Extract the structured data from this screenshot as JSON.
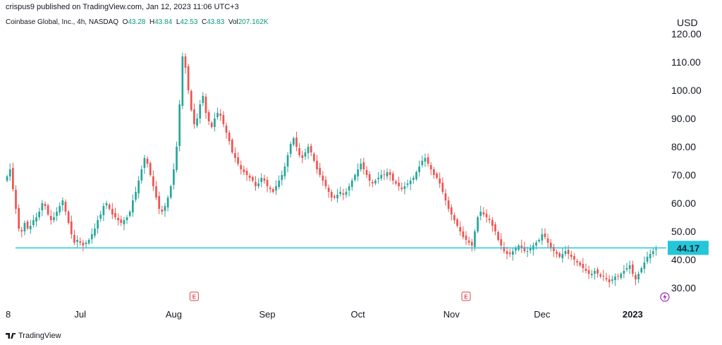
{
  "header": {
    "published": "crispus9 published on TradingView.com, Jan 12, 2023 11:06 UTC+3"
  },
  "legend": {
    "symbol": "Coinbase Global, Inc., 4h, NASDAQ",
    "o_label": "O",
    "o_value": "43.28",
    "h_label": "H",
    "h_value": "43.84",
    "l_label": "L",
    "l_value": "42.53",
    "c_label": "C",
    "c_value": "43.83",
    "vol_label": "Vol",
    "vol_value": "207.162K"
  },
  "currency": "USD",
  "footer": {
    "brand": "TradingView"
  },
  "colors": {
    "up": "#26a69a",
    "down": "#ef5350",
    "level_line": "#26c6da",
    "price_tag": "#26c6da",
    "event_marker": "#e0424b",
    "lightning": "#9c27b0"
  },
  "chart_data": {
    "type": "candlestick",
    "timeframe": "4h",
    "ylim": [
      25,
      122
    ],
    "y_ticks": [
      "30.00",
      "40.00",
      "50.00",
      "60.00",
      "70.00",
      "80.00",
      "90.00",
      "100.00",
      "110.00",
      "120.00"
    ],
    "y_tick_values": [
      30,
      40,
      50,
      60,
      70,
      80,
      90,
      100,
      110,
      120
    ],
    "x_ticks": [
      {
        "label": "8",
        "index": 0,
        "bold": false
      },
      {
        "label": "Jul",
        "index": 25,
        "bold": false
      },
      {
        "label": "Aug",
        "index": 57,
        "bold": false
      },
      {
        "label": "Sep",
        "index": 89,
        "bold": false
      },
      {
        "label": "Oct",
        "index": 120,
        "bold": false
      },
      {
        "label": "Nov",
        "index": 152,
        "bold": false
      },
      {
        "label": "Dec",
        "index": 183,
        "bold": false
      },
      {
        "label": "2023",
        "index": 214,
        "bold": true
      }
    ],
    "horizontal_level": 44.17,
    "last_price": "44.17",
    "earnings_marker_indices": [
      64,
      157
    ],
    "event_marker_label": "E",
    "lightning_marker_index": 225,
    "closes": [
      69.5,
      72,
      65,
      58,
      51,
      50,
      53,
      51,
      52,
      54,
      55,
      57,
      60,
      59,
      56,
      54,
      55,
      57,
      59,
      61,
      57,
      53,
      49,
      46,
      47,
      46,
      45,
      46,
      47,
      49,
      51,
      54,
      56,
      59,
      60,
      58,
      56,
      55,
      54,
      53,
      54,
      55,
      57,
      61,
      64,
      68,
      72,
      76,
      74,
      70,
      66,
      62,
      58,
      57,
      59,
      62,
      66,
      72,
      80,
      95,
      112,
      108,
      100,
      93,
      88,
      90,
      95,
      98,
      92,
      89,
      87,
      90,
      92,
      91,
      88,
      85,
      82,
      78,
      76,
      74,
      72,
      71,
      70,
      69,
      68,
      66,
      67,
      69,
      68,
      66,
      65,
      64,
      66,
      68,
      70,
      73,
      77,
      81,
      83,
      80,
      77,
      76,
      78,
      80,
      78,
      75,
      72,
      70,
      68,
      66,
      64,
      62,
      62,
      63,
      64,
      63,
      64,
      66,
      68,
      70,
      72,
      74,
      72,
      70,
      68,
      67,
      68,
      69,
      70,
      70,
      71,
      70,
      68,
      67,
      66,
      65,
      66,
      67,
      68,
      69,
      71,
      73,
      75,
      76,
      74,
      72,
      70,
      69,
      67,
      64,
      61,
      58,
      56,
      54,
      52,
      50,
      48,
      47,
      46,
      45,
      50,
      55,
      57,
      56,
      55,
      54,
      52,
      50,
      47,
      45,
      43,
      42,
      42,
      43,
      44,
      45,
      44,
      43,
      43,
      44,
      45,
      46,
      47,
      49,
      48,
      46,
      44,
      43,
      42,
      41,
      42,
      43,
      42,
      41,
      40,
      39,
      38,
      37,
      36,
      35,
      35,
      36,
      35,
      34,
      34,
      33,
      32,
      33,
      34,
      34,
      35,
      36,
      37,
      38,
      35,
      33,
      35,
      37,
      39,
      41,
      42,
      43,
      43.83
    ]
  }
}
